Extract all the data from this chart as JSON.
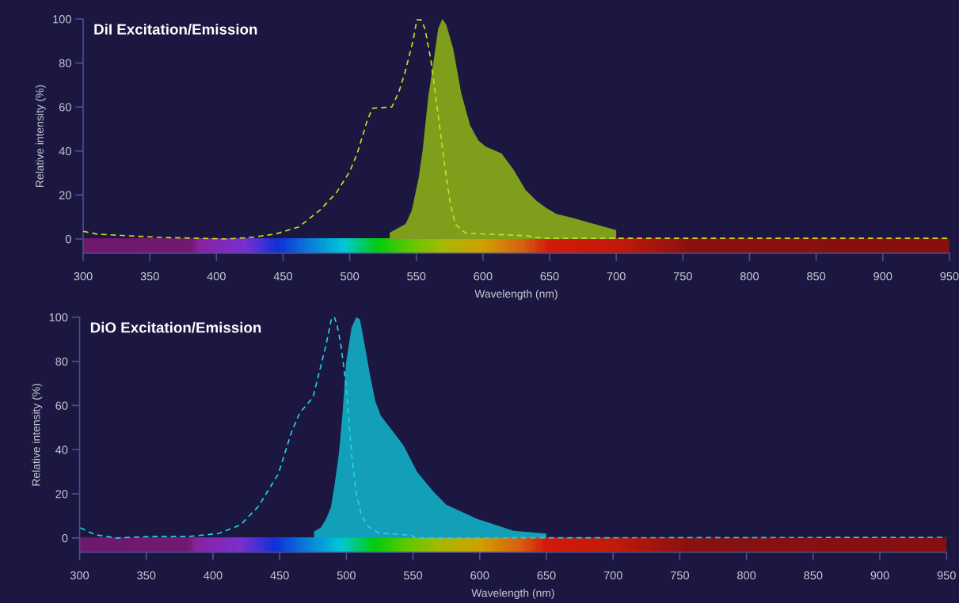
{
  "chart_data": [
    {
      "type": "area",
      "title": "DiI Excitation/Emission",
      "xlabel": "Wavelength (nm)",
      "ylabel": "Relative intensity (%)",
      "xlim": [
        300,
        950
      ],
      "ylim": [
        -6.5,
        100
      ],
      "xticks": [
        300,
        350,
        400,
        450,
        500,
        550,
        600,
        650,
        700,
        750,
        800,
        850,
        900,
        950
      ],
      "yticks": [
        0,
        20,
        40,
        60,
        80,
        100
      ],
      "series": [
        {
          "color": "#7f9e1c",
          "x": [
            530,
            542,
            546.6,
            551.8,
            554.8,
            558.9,
            562.5,
            566.4,
            569.5,
            572.5,
            577.7,
            583.7,
            590.4,
            596.7,
            601.9,
            614,
            623,
            632,
            640,
            647.5,
            655,
            668.8,
            687,
            700
          ],
          "values": [
            2.9,
            6.8,
            13,
            28,
            40.6,
            64.5,
            79,
            95.6,
            100,
            97.4,
            86.4,
            66.3,
            51.6,
            44.7,
            42.1,
            38.8,
            31.5,
            22.3,
            17.4,
            14.1,
            11.4,
            9.3,
            6.2,
            4
          ]
        },
        {
          "type": "line",
          "line_style": "dashed",
          "color": "#c8e020",
          "x": [
            300,
            310.6,
            329,
            359,
            380,
            408,
            426,
            444,
            462,
            477.5,
            490,
            500,
            505.6,
            513,
            517,
            531.6,
            537,
            541.4,
            547.5,
            550.4,
            553.6,
            556.5,
            561,
            567,
            571.7,
            575.3,
            579.2,
            587,
            632,
            644.5,
            650,
            950
          ],
          "values": [
            3.5,
            2.2,
            1.6,
            0.7,
            0.4,
            0,
            0.7,
            2.2,
            5.5,
            13,
            21,
            30.6,
            38.8,
            53.5,
            59.4,
            60,
            67,
            75.5,
            90,
            99.6,
            99.6,
            95.6,
            81,
            53.5,
            31.5,
            16.8,
            6.8,
            2.6,
            1.5,
            0.4,
            0.3,
            0.3
          ]
        }
      ]
    },
    {
      "type": "area",
      "title": "DiO Excitation/Emission",
      "xlabel": "Wavelength (nm)",
      "ylabel": "Relative intensity (%)",
      "xlim": [
        300,
        950
      ],
      "ylim": [
        -6.5,
        100
      ],
      "xticks": [
        300,
        350,
        400,
        450,
        500,
        550,
        600,
        650,
        700,
        750,
        800,
        850,
        900,
        950
      ],
      "yticks": [
        0,
        20,
        40,
        60,
        80,
        100
      ],
      "series": [
        {
          "color": "#149fb8",
          "x": [
            475.8,
            480.7,
            484.8,
            488.4,
            491,
            494.4,
            497.1,
            499.8,
            503.9,
            507.5,
            510.2,
            513.5,
            517.6,
            521.7,
            525.8,
            535.3,
            543,
            553,
            565.4,
            574.9,
            598.1,
            625.4,
            650
          ],
          "values": [
            3,
            4.6,
            8.6,
            13.8,
            23.4,
            38.2,
            56.3,
            79.3,
            95.4,
            100,
            99,
            88.3,
            74.3,
            62,
            55.4,
            48,
            41.8,
            30,
            20.9,
            15.1,
            8.6,
            3.3,
            2
          ]
        },
        {
          "type": "line",
          "line_style": "dashed",
          "color": "#22d3e6",
          "x": [
            300.5,
            311.5,
            328,
            339,
            355,
            382,
            404,
            420.7,
            434,
            449,
            458.9,
            465,
            475,
            479.4,
            484.8,
            489,
            491,
            493,
            495.7,
            499.8,
            503.9,
            507.5,
            511.3,
            516.2,
            524.4,
            549,
            551.7,
            950
          ],
          "values": [
            4.6,
            1.5,
            0,
            0.3,
            0.7,
            0.7,
            2,
            5.9,
            14.3,
            29,
            48,
            56.6,
            63.7,
            74.3,
            87.5,
            99.8,
            100,
            96.5,
            88.3,
            69.4,
            38.2,
            20,
            10.2,
            5.3,
            2.3,
            1.2,
            0,
            0.3
          ]
        }
      ]
    }
  ]
}
